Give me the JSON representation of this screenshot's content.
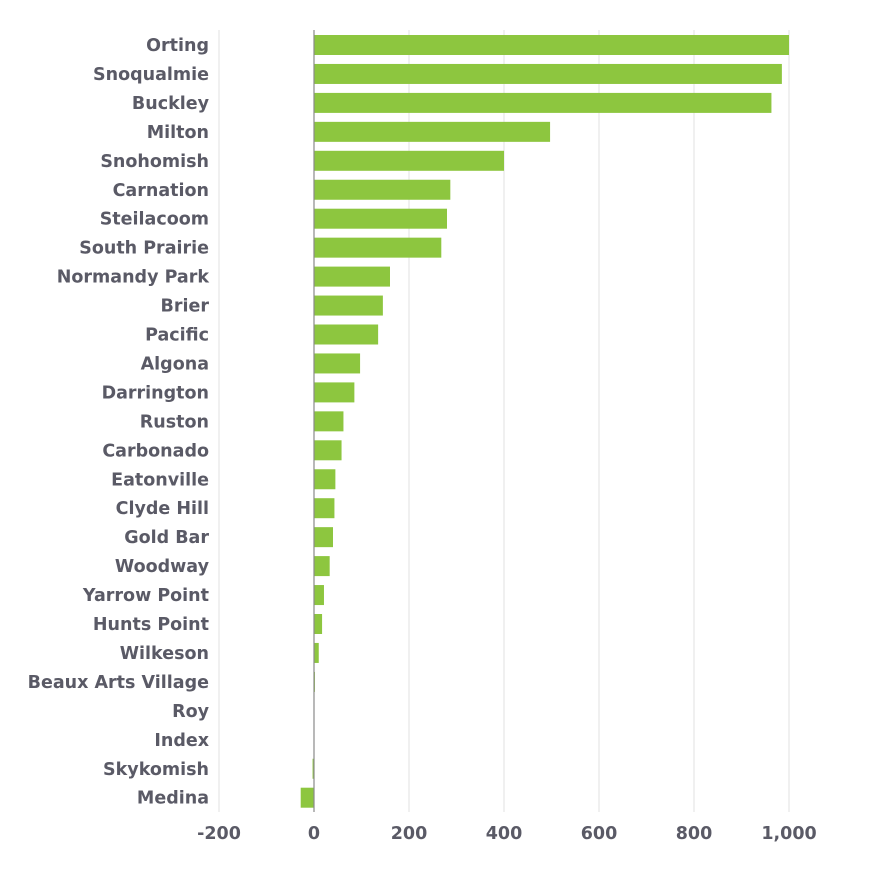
{
  "chart_data": {
    "type": "bar",
    "orientation": "horizontal",
    "title": "",
    "xlabel": "",
    "ylabel": "",
    "categories": [
      "Orting",
      "Snoqualmie",
      "Buckley",
      "Milton",
      "Snohomish",
      "Carnation",
      "Steilacoom",
      "South Prairie",
      "Normandy Park",
      "Brier",
      "Pacific",
      "Algona",
      "Darrington",
      "Ruston",
      "Carbonado",
      "Eatonville",
      "Clyde Hill",
      "Gold Bar",
      "Woodway",
      "Yarrow Point",
      "Hunts Point",
      "Wilkeson",
      "Beaux Arts Village",
      "Roy",
      "Index",
      "Skykomish",
      "Medina"
    ],
    "values": [
      1000,
      985,
      963,
      497,
      400,
      287,
      280,
      268,
      160,
      145,
      135,
      97,
      85,
      62,
      58,
      45,
      43,
      40,
      33,
      21,
      17,
      10,
      2,
      1,
      1,
      -3,
      -28
    ],
    "xlim": [
      -200,
      1000
    ],
    "xticks": [
      -200,
      0,
      200,
      400,
      600,
      800,
      1000
    ],
    "xtick_labels": [
      "-200",
      "0",
      "200",
      "400",
      "600",
      "800",
      "1,000"
    ],
    "grid": true,
    "legend": "none",
    "bar_color": "#8dc63f",
    "text_color": "#5a5a66",
    "grid_color": "#e2e2e2"
  }
}
